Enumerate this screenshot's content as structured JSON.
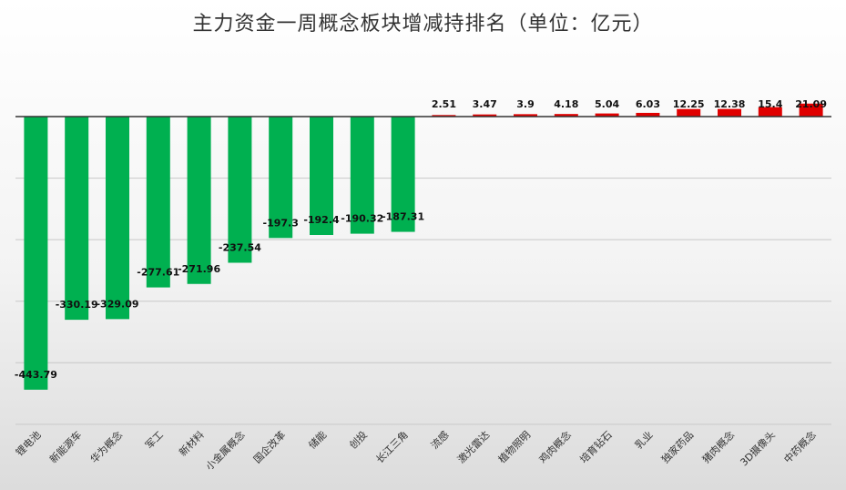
{
  "chart_data": {
    "type": "bar",
    "title": "主力资金一周概念板块增减持排名（单位：亿元）",
    "xlabel": "",
    "ylabel": "",
    "ylim": [
      -500,
      0
    ],
    "grid": true,
    "categories": [
      "锂电池",
      "新能源车",
      "华为概念",
      "军工",
      "新材料",
      "小金属概念",
      "国企改革",
      "储能",
      "创投",
      "长江三角",
      "流感",
      "激光雷达",
      "植物照明",
      "鸡肉概念",
      "培育钻石",
      "乳业",
      "独家药品",
      "猪肉概念",
      "3D摄像头",
      "中药概念"
    ],
    "values": [
      -443.79,
      -330.19,
      -329.09,
      -277.61,
      -271.96,
      -237.54,
      -197.3,
      -192.4,
      -190.32,
      -187.31,
      2.51,
      3.47,
      3.9,
      4.18,
      5.04,
      6.03,
      12.25,
      12.38,
      15.4,
      21.09
    ],
    "value_labels": [
      "-443.79",
      "-330.19",
      "-329.09",
      "-277.61",
      "-271.96",
      "-237.54",
      "-197.3",
      "-192.4",
      "-190.32",
      "-187.31",
      "2.51",
      "3.47",
      "3.9",
      "4.18",
      "5.04",
      "6.03",
      "12.25",
      "12.38",
      "15.4",
      "21.09"
    ],
    "colors": {
      "negative": "#00b050",
      "positive": "#e00000"
    }
  }
}
